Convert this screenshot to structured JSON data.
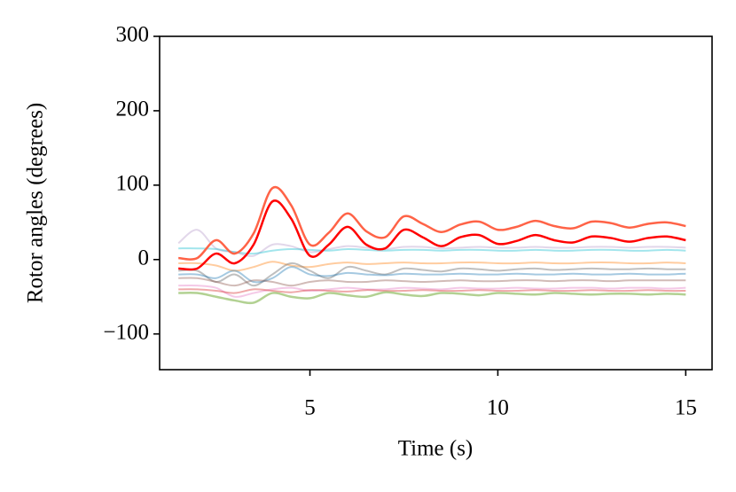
{
  "chart_data": {
    "type": "line",
    "xlabel": "Time (s)",
    "ylabel": "Rotor angles (degrees)",
    "x": [
      1.5,
      2,
      2.5,
      3,
      3.5,
      4,
      4.5,
      5,
      5.5,
      6,
      6.5,
      7,
      7.5,
      8,
      8.5,
      9,
      9.5,
      10,
      10.5,
      11,
      11.5,
      12,
      12.5,
      13,
      13.5,
      14,
      14.5,
      15
    ],
    "xlim": [
      1,
      15.7
    ],
    "xticks": [
      5,
      10,
      15
    ],
    "ylim": [
      -148,
      300
    ],
    "yticks": [
      {
        "value": -100,
        "label": "−100"
      },
      0,
      100,
      200,
      300
    ],
    "series": [
      {
        "color": "#c5b0d5",
        "opacity": 0.5,
        "width": 2,
        "values": [
          22,
          40,
          15,
          10,
          5,
          20,
          18,
          10,
          14,
          18,
          16,
          14,
          17,
          17,
          15,
          16,
          17,
          16,
          16,
          17,
          16,
          16,
          17,
          17,
          16,
          17,
          17,
          16
        ]
      },
      {
        "color": "#17becf",
        "opacity": 0.4,
        "width": 2,
        "values": [
          15,
          15,
          14,
          10,
          8,
          12,
          14,
          13,
          12,
          14,
          13,
          12,
          13,
          13,
          12,
          13,
          13,
          12,
          12,
          13,
          12,
          12,
          13,
          13,
          12,
          12,
          13,
          12
        ]
      },
      {
        "color": "#ff7f0e",
        "opacity": 0.4,
        "width": 2,
        "values": [
          -5,
          -5,
          -8,
          -15,
          -10,
          -3,
          -8,
          -10,
          -6,
          -4,
          -6,
          -5,
          -4,
          -5,
          -5,
          -4,
          -4,
          -5,
          -5,
          -4,
          -5,
          -5,
          -4,
          -4,
          -5,
          -5,
          -4,
          -5
        ]
      },
      {
        "color": "#7f7f7f",
        "opacity": 0.5,
        "width": 2,
        "values": [
          -15,
          -15,
          -30,
          -20,
          -35,
          -20,
          -5,
          -15,
          -25,
          -10,
          -15,
          -20,
          -12,
          -14,
          -16,
          -12,
          -13,
          -15,
          -13,
          -12,
          -14,
          -13,
          -12,
          -13,
          -13,
          -12,
          -13,
          -13
        ]
      },
      {
        "color": "#1f77b4",
        "opacity": 0.4,
        "width": 2,
        "values": [
          -20,
          -20,
          -25,
          -15,
          -30,
          -25,
          -10,
          -20,
          -22,
          -18,
          -20,
          -21,
          -19,
          -20,
          -20,
          -19,
          -20,
          -20,
          -19,
          -20,
          -20,
          -19,
          -20,
          -20,
          -19,
          -20,
          -20,
          -19
        ]
      },
      {
        "color": "#8c564b",
        "opacity": 0.4,
        "width": 2,
        "values": [
          -25,
          -25,
          -30,
          -35,
          -28,
          -30,
          -35,
          -30,
          -28,
          -30,
          -30,
          -28,
          -29,
          -30,
          -29,
          -28,
          -29,
          -29,
          -28,
          -28,
          -29,
          -28,
          -28,
          -29,
          -28,
          -28,
          -28,
          -28
        ]
      },
      {
        "color": "#e377c2",
        "opacity": 0.4,
        "width": 2,
        "values": [
          -35,
          -35,
          -38,
          -50,
          -45,
          -40,
          -38,
          -42,
          -40,
          -38,
          -40,
          -40,
          -38,
          -39,
          -40,
          -38,
          -39,
          -39,
          -38,
          -39,
          -39,
          -38,
          -38,
          -39,
          -38,
          -38,
          -39,
          -38
        ]
      },
      {
        "color": "#d62728",
        "opacity": 0.4,
        "width": 2,
        "values": [
          -40,
          -40,
          -42,
          -45,
          -40,
          -42,
          -44,
          -41,
          -42,
          -43,
          -41,
          -42,
          -42,
          -41,
          -42,
          -42,
          -41,
          -42,
          -42,
          -41,
          -42,
          -42,
          -41,
          -42,
          -42,
          -41,
          -42,
          -42
        ]
      },
      {
        "color": "#7fb34a",
        "opacity": 0.6,
        "width": 2.5,
        "values": [
          -45,
          -45,
          -50,
          -55,
          -58,
          -45,
          -50,
          -52,
          -45,
          -48,
          -50,
          -44,
          -47,
          -49,
          -45,
          -46,
          -48,
          -45,
          -46,
          -47,
          -45,
          -46,
          -47,
          -46,
          -46,
          -47,
          -46,
          -47
        ]
      },
      {
        "color": "#ff6347",
        "opacity": 1,
        "width": 2.5,
        "values": [
          2,
          2,
          26,
          8,
          35,
          96,
          73,
          20,
          36,
          62,
          38,
          30,
          58,
          48,
          37,
          47,
          51,
          40,
          44,
          52,
          45,
          42,
          51,
          49,
          43,
          48,
          50,
          45
        ]
      },
      {
        "color": "#ff0000",
        "opacity": 1,
        "width": 2.5,
        "values": [
          -12,
          -12,
          8,
          -5,
          20,
          78,
          55,
          5,
          20,
          44,
          20,
          15,
          40,
          30,
          18,
          30,
          33,
          21,
          25,
          33,
          26,
          23,
          31,
          29,
          24,
          29,
          31,
          26
        ]
      }
    ]
  }
}
